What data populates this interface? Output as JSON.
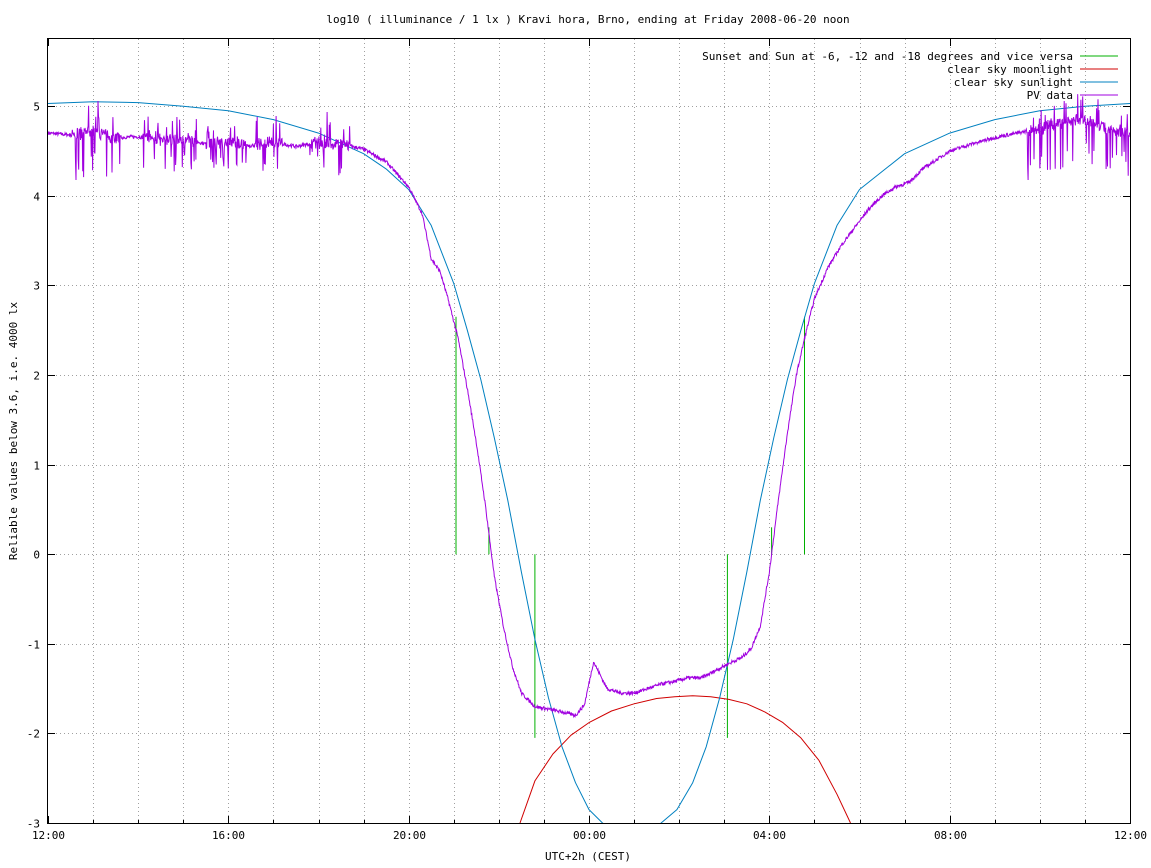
{
  "chart_data": {
    "type": "line",
    "title": "log10 ( illuminance / 1 lx ) Kravi hora, Brno, ending at Friday 2008-06-20 noon",
    "xlabel": "UTC+2h (CEST)",
    "ylabel": "Reliable values below 3.6, i.e. 4000 lx",
    "x_unit": "hours since 2008-06-19 12:00 CEST",
    "xlim": [
      0,
      24
    ],
    "ylim": [
      -3,
      5.75
    ],
    "x_ticks": [
      {
        "value": 0,
        "label": "12:00"
      },
      {
        "value": 4,
        "label": "16:00"
      },
      {
        "value": 8,
        "label": "20:00"
      },
      {
        "value": 12,
        "label": "00:00"
      },
      {
        "value": 16,
        "label": "04:00"
      },
      {
        "value": 20,
        "label": "08:00"
      },
      {
        "value": 24,
        "label": "12:00"
      }
    ],
    "y_ticks": [
      {
        "value": 5,
        "label": "5"
      },
      {
        "value": 4,
        "label": "4"
      },
      {
        "value": 3,
        "label": "3"
      },
      {
        "value": 2,
        "label": "2"
      },
      {
        "value": 1,
        "label": "1"
      },
      {
        "value": 0,
        "label": "0"
      },
      {
        "value": -1,
        "label": "-1"
      },
      {
        "value": -2,
        "label": "-2"
      },
      {
        "value": -3,
        "label": "-3"
      }
    ],
    "grid": true,
    "grid_minor_x_step": 1,
    "legend_position": "top-right",
    "series": [
      {
        "name": "Sunset and Sun at -6, -12 and -18 degrees and vice versa",
        "color": "#00b000",
        "style": "impulses",
        "x": [
          9.05,
          9.78,
          10.8,
          15.07,
          16.05,
          16.78
        ],
        "y": [
          2.65,
          0.3,
          -2.05,
          -2.05,
          0.3,
          2.65
        ]
      },
      {
        "name": "clear sky moonlight",
        "color": "#d00000",
        "x": [
          10.47,
          10.8,
          11.2,
          11.6,
          12.0,
          12.5,
          13.0,
          13.5,
          13.9,
          14.3,
          14.7,
          15.1,
          15.5,
          15.9,
          16.3,
          16.7,
          17.1,
          17.5,
          17.8
        ],
        "y": [
          -3.0,
          -2.53,
          -2.23,
          -2.02,
          -1.88,
          -1.75,
          -1.67,
          -1.61,
          -1.59,
          -1.58,
          -1.59,
          -1.62,
          -1.67,
          -1.76,
          -1.88,
          -2.05,
          -2.3,
          -2.68,
          -3.0
        ]
      },
      {
        "name": "clear sky sunlight",
        "color": "#0080c0",
        "x": [
          0,
          1,
          2,
          3,
          4,
          5,
          6,
          7,
          7.5,
          8,
          8.5,
          9,
          9.3,
          9.6,
          9.9,
          10.2,
          10.5,
          10.8,
          11.1,
          11.4,
          11.7,
          12.0,
          12.3,
          12.6,
          12.95,
          13.3,
          13.6,
          13.95,
          14.3,
          14.6,
          14.9,
          15.2,
          15.5,
          15.8,
          16.1,
          16.4,
          16.7,
          17.0,
          17.5,
          18,
          19,
          20,
          21,
          22,
          23,
          24
        ],
        "y": [
          5.03,
          5.05,
          5.04,
          5.0,
          4.95,
          4.85,
          4.7,
          4.47,
          4.3,
          4.07,
          3.67,
          3.02,
          2.5,
          1.95,
          1.3,
          0.6,
          -0.2,
          -0.95,
          -1.6,
          -2.15,
          -2.55,
          -2.85,
          -3.0,
          -3.1,
          -3.15,
          -3.1,
          -3.0,
          -2.85,
          -2.55,
          -2.15,
          -1.6,
          -0.95,
          -0.2,
          0.6,
          1.3,
          1.95,
          2.5,
          3.02,
          3.67,
          4.07,
          4.47,
          4.7,
          4.85,
          4.95,
          5.0,
          5.03
        ]
      },
      {
        "name": "PV data",
        "color": "#a000e0",
        "style": "noisy",
        "x": [
          0,
          0.5,
          1.0,
          1.5,
          2.0,
          2.5,
          3.0,
          3.5,
          4.0,
          4.5,
          5.0,
          5.5,
          6.0,
          6.5,
          7.0,
          7.5,
          8.0,
          8.3,
          8.5,
          8.7,
          8.9,
          9.1,
          9.3,
          9.5,
          9.7,
          9.9,
          10.1,
          10.3,
          10.5,
          10.8,
          11.1,
          11.4,
          11.7,
          11.9,
          12.1,
          12.4,
          12.7,
          13.0,
          13.3,
          13.6,
          13.9,
          14.2,
          14.5,
          14.8,
          15.1,
          15.4,
          15.6,
          15.8,
          16.0,
          16.2,
          16.4,
          16.6,
          16.8,
          17.0,
          17.3,
          17.6,
          17.9,
          18.2,
          18.5,
          18.8,
          19.1,
          19.4,
          19.7,
          20.0,
          20.5,
          21.0,
          21.5,
          22.0,
          22.5,
          23.0,
          23.5,
          24.0
        ],
        "y": [
          4.7,
          4.68,
          4.72,
          4.65,
          4.66,
          4.62,
          4.64,
          4.58,
          4.6,
          4.56,
          4.6,
          4.55,
          4.6,
          4.58,
          4.52,
          4.38,
          4.1,
          3.8,
          3.3,
          3.15,
          2.8,
          2.4,
          1.85,
          1.25,
          0.55,
          -0.25,
          -0.8,
          -1.25,
          -1.55,
          -1.7,
          -1.73,
          -1.76,
          -1.8,
          -1.68,
          -1.2,
          -1.5,
          -1.55,
          -1.55,
          -1.5,
          -1.45,
          -1.42,
          -1.38,
          -1.38,
          -1.3,
          -1.22,
          -1.15,
          -1.05,
          -0.8,
          -0.2,
          0.6,
          1.35,
          2.0,
          2.45,
          2.85,
          3.2,
          3.45,
          3.65,
          3.85,
          4.0,
          4.1,
          4.15,
          4.3,
          4.4,
          4.5,
          4.58,
          4.65,
          4.7,
          4.75,
          4.82,
          4.85,
          4.75,
          4.7
        ],
        "noisy_ranges": [
          {
            "x0": 0.5,
            "x1": 1.6,
            "low": -0.5,
            "high": 0.35
          },
          {
            "x0": 2.1,
            "x1": 3.3,
            "low": -0.35,
            "high": 0.25
          },
          {
            "x0": 3.5,
            "x1": 4.4,
            "low": -0.3,
            "high": 0.2
          },
          {
            "x0": 4.6,
            "x1": 5.2,
            "low": -0.35,
            "high": 0.3
          },
          {
            "x0": 5.8,
            "x1": 6.2,
            "low": -0.15,
            "high": 0.3
          },
          {
            "x0": 6.1,
            "x1": 6.7,
            "low": -0.5,
            "high": 0.25
          },
          {
            "x0": 21.7,
            "x1": 24.0,
            "low": -0.55,
            "high": 0.3
          }
        ]
      }
    ]
  }
}
